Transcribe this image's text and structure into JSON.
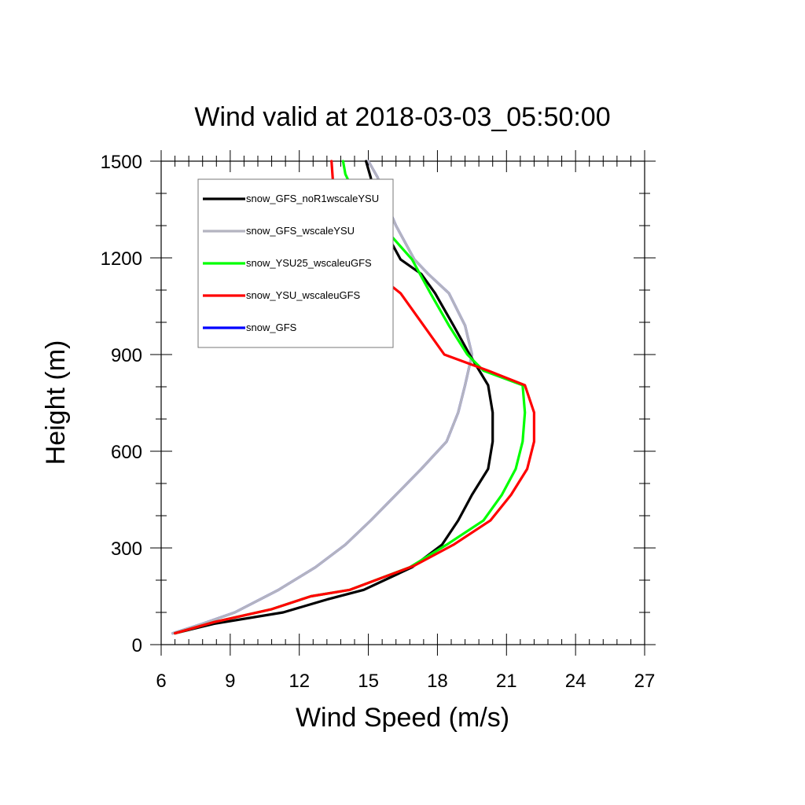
{
  "chart_data": {
    "type": "line",
    "title": "Wind valid at 2018-03-03_05:50:00",
    "xlabel": "Wind Speed (m/s)",
    "ylabel": "Height (m)",
    "xlim": [
      6,
      27
    ],
    "ylim": [
      0,
      1500
    ],
    "xticks": [
      "6",
      "9",
      "12",
      "15",
      "18",
      "21",
      "24",
      "27"
    ],
    "yticks": [
      "0",
      "300",
      "600",
      "900",
      "1200",
      "1500"
    ],
    "legend_position": "top-left",
    "series": [
      {
        "name": "snow_GFS_noR1wscaleYSU",
        "color": "#000000",
        "points": [
          [
            6.6,
            35
          ],
          [
            8.3,
            65
          ],
          [
            11.3,
            100
          ],
          [
            13.2,
            140
          ],
          [
            14.8,
            170
          ],
          [
            16.9,
            240
          ],
          [
            18.2,
            310
          ],
          [
            18.9,
            385
          ],
          [
            19.5,
            465
          ],
          [
            20.2,
            545
          ],
          [
            20.4,
            630
          ],
          [
            20.4,
            720
          ],
          [
            20.2,
            805
          ],
          [
            19.4,
            900
          ],
          [
            18.7,
            990
          ],
          [
            17.9,
            1090
          ],
          [
            17.3,
            1150
          ],
          [
            16.4,
            1195
          ],
          [
            15.6,
            1300
          ],
          [
            15.4,
            1350
          ],
          [
            15.1,
            1450
          ],
          [
            14.9,
            1500
          ]
        ]
      },
      {
        "name": "snow_GFS_wscaleYSU",
        "color": "#b4b4c0",
        "points": [
          [
            6.5,
            35
          ],
          [
            7.8,
            65
          ],
          [
            9.2,
            100
          ],
          [
            11.1,
            170
          ],
          [
            12.7,
            240
          ],
          [
            14.0,
            310
          ],
          [
            15.1,
            385
          ],
          [
            16.2,
            465
          ],
          [
            17.3,
            545
          ],
          [
            18.4,
            630
          ],
          [
            18.9,
            720
          ],
          [
            19.2,
            805
          ],
          [
            19.5,
            900
          ],
          [
            19.2,
            990
          ],
          [
            18.5,
            1090
          ],
          [
            17.6,
            1150
          ],
          [
            17.0,
            1195
          ],
          [
            16.2,
            1300
          ],
          [
            15.9,
            1350
          ],
          [
            15.4,
            1450
          ],
          [
            15.0,
            1500
          ]
        ]
      },
      {
        "name": "snow_YSU25_wscaleuGFS",
        "color": "#00ff00",
        "points": [
          [
            6.6,
            35
          ],
          [
            8.3,
            70
          ],
          [
            10.8,
            110
          ],
          [
            12.5,
            150
          ],
          [
            14.2,
            170
          ],
          [
            16.8,
            240
          ],
          [
            18.4,
            310
          ],
          [
            20.0,
            385
          ],
          [
            20.8,
            465
          ],
          [
            21.4,
            545
          ],
          [
            21.7,
            630
          ],
          [
            21.8,
            720
          ],
          [
            21.7,
            805
          ],
          [
            20.0,
            850
          ],
          [
            19.3,
            900
          ],
          [
            18.5,
            990
          ],
          [
            17.7,
            1090
          ],
          [
            16.9,
            1195
          ],
          [
            15.6,
            1300
          ],
          [
            14.4,
            1400
          ],
          [
            14.0,
            1460
          ],
          [
            13.9,
            1500
          ]
        ]
      },
      {
        "name": "snow_YSU_wscaleuGFS",
        "color": "#ff0000",
        "points": [
          [
            6.6,
            35
          ],
          [
            8.3,
            70
          ],
          [
            10.8,
            110
          ],
          [
            12.5,
            150
          ],
          [
            14.2,
            170
          ],
          [
            17.0,
            245
          ],
          [
            18.7,
            310
          ],
          [
            20.3,
            385
          ],
          [
            21.2,
            465
          ],
          [
            21.9,
            545
          ],
          [
            22.2,
            630
          ],
          [
            22.2,
            720
          ],
          [
            21.8,
            805
          ],
          [
            20.2,
            850
          ],
          [
            18.3,
            900
          ],
          [
            17.4,
            990
          ],
          [
            16.4,
            1090
          ],
          [
            15.0,
            1170
          ],
          [
            14.2,
            1220
          ],
          [
            13.6,
            1300
          ],
          [
            13.5,
            1400
          ],
          [
            13.4,
            1500
          ]
        ]
      },
      {
        "name": "snow_GFS",
        "color": "#0000ff",
        "points": [
          [
            6.5,
            35
          ],
          [
            7.8,
            65
          ],
          [
            9.2,
            100
          ],
          [
            11.1,
            170
          ],
          [
            12.7,
            240
          ],
          [
            14.0,
            310
          ],
          [
            15.1,
            385
          ],
          [
            16.2,
            465
          ],
          [
            17.3,
            545
          ],
          [
            18.4,
            630
          ],
          [
            18.9,
            720
          ],
          [
            19.2,
            805
          ],
          [
            19.5,
            900
          ],
          [
            19.2,
            990
          ],
          [
            18.5,
            1090
          ],
          [
            17.6,
            1150
          ],
          [
            17.0,
            1195
          ],
          [
            16.2,
            1300
          ],
          [
            15.9,
            1350
          ],
          [
            15.4,
            1450
          ],
          [
            15.0,
            1500
          ]
        ]
      }
    ],
    "draw_order": [
      4,
      1,
      0,
      2,
      3
    ]
  }
}
